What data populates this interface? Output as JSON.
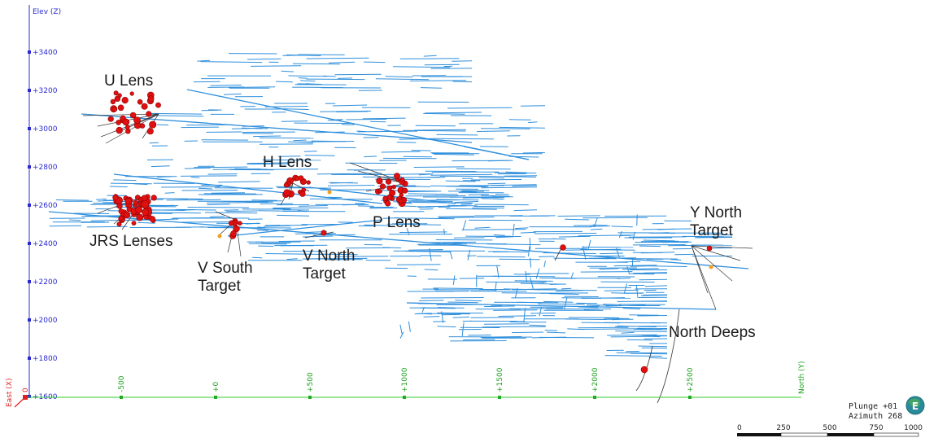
{
  "axes": {
    "elev_label": "Elev (Z)",
    "east_label": "East (X)",
    "north_label": "North (Y)",
    "east_zero": "0",
    "elev_ticks": [
      "+3400",
      "+3200",
      "+3000",
      "+2800",
      "+2600",
      "+2400",
      "+2200",
      "+2000",
      "+1800",
      "+1600"
    ],
    "north_ticks": [
      "-500",
      "+0",
      "+500",
      "+1000",
      "+1500",
      "+2000",
      "+2500"
    ]
  },
  "targets": [
    {
      "lines": [
        "U Lens"
      ]
    },
    {
      "lines": [
        "H Lens"
      ]
    },
    {
      "lines": [
        "P Lens"
      ]
    },
    {
      "lines": [
        "JRS Lenses"
      ]
    },
    {
      "lines": [
        "V South",
        "Target"
      ]
    },
    {
      "lines": [
        "V North",
        "Target"
      ]
    },
    {
      "lines": [
        "Y North",
        "Target"
      ]
    },
    {
      "lines": [
        "North Deeps"
      ]
    }
  ],
  "view": {
    "plunge": "Plunge +01",
    "azimuth": "Azimuth 268",
    "compass_letter": "E"
  },
  "scale_bar": {
    "labels": [
      "0",
      "250",
      "500",
      "750",
      "1000"
    ]
  },
  "colors": {
    "workings": "#2f8fdc",
    "drill_hit": "#e01010",
    "elev_axis": "#2a2ad0",
    "north_axis": "#33cc33",
    "east_axis": "#dd2222"
  }
}
